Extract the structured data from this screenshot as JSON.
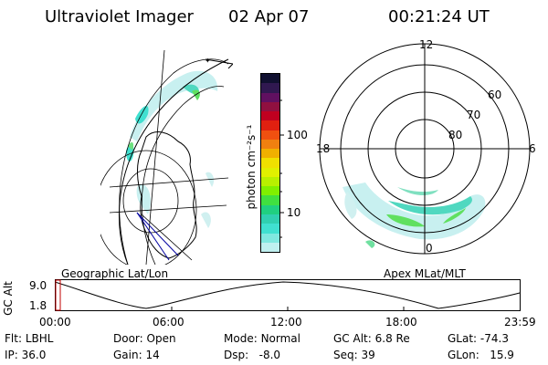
{
  "header": {
    "instrument": "Ultraviolet Imager",
    "date": "02 Apr 07",
    "time": "00:21:24 UT"
  },
  "left_panel": {
    "caption": "Geographic Lat/Lon"
  },
  "colorbar": {
    "unit_label": "photon cm⁻²s⁻¹",
    "ticks": [
      "100",
      "10"
    ],
    "colors": [
      "#101030",
      "#301850",
      "#601060",
      "#901040",
      "#c00020",
      "#e02010",
      "#f05010",
      "#f08010",
      "#f0b000",
      "#f0e000",
      "#e0f000",
      "#b8f000",
      "#80f000",
      "#40e040",
      "#20d080",
      "#30d0b0",
      "#40e0d0",
      "#80e8e0",
      "#c0f0f0"
    ]
  },
  "right_panel": {
    "caption": "Apex MLat/MLT",
    "mlt_labels": {
      "top": "12",
      "left": "18",
      "right": "6",
      "bottom": "0"
    },
    "lat_labels": [
      "60",
      "70",
      "80"
    ]
  },
  "timeline": {
    "ylabel": "GC Alt",
    "y_ticks": [
      "9.0",
      "1.8"
    ],
    "x_ticks": [
      "00:00",
      "06:00",
      "12:00",
      "18:00",
      "23:59"
    ]
  },
  "status": {
    "flt_label": "Flt:",
    "flt_value": "LBHL",
    "ip_label": "IP:",
    "ip_value": "36.0",
    "door_label": "Door:",
    "door_value": "Open",
    "gain_label": "Gain:",
    "gain_value": "14",
    "mode_label": "Mode:",
    "mode_value": "Normal",
    "dsp_label": "Dsp:",
    "dsp_value": "-8.0",
    "gcalt_label": "GC Alt:",
    "gcalt_value": "6.8 Re",
    "seq_label": "Seq:",
    "seq_value": "39",
    "glat_label": "GLat:",
    "glat_value": "-74.3",
    "glon_label": "GLon:",
    "glon_value": "15.9"
  }
}
